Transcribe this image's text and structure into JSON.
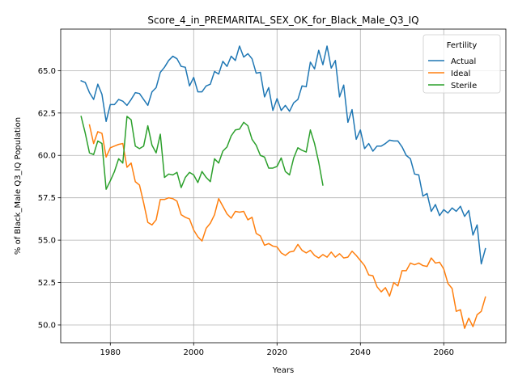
{
  "chart_data": {
    "type": "line",
    "title": "Score_4_in_PREMARITAL_SEX_OK_for_Black_Male_Q3_IQ",
    "xlabel": "Years",
    "ylabel": "% of Black_Male Q3_IQ Population",
    "xlim": [
      1968.1,
      2074.9
    ],
    "ylim": [
      48.95,
      67.45
    ],
    "xticks": [
      1980,
      2000,
      2020,
      2040,
      2060
    ],
    "xtick_labels": [
      "1980",
      "2000",
      "2020",
      "2040",
      "2060"
    ],
    "yticks": [
      50.0,
      52.5,
      55.0,
      57.5,
      60.0,
      62.5,
      65.0
    ],
    "ytick_labels": [
      "50.0",
      "52.5",
      "55.0",
      "57.5",
      "60.0",
      "62.5",
      "65.0"
    ],
    "grid": true,
    "legend": {
      "title": "Fertility",
      "position": "upper-right"
    },
    "series": [
      {
        "name": "Actual",
        "color": "#1f77b4",
        "x": [
          1973,
          1974,
          1975,
          1976,
          1977,
          1978,
          1979,
          1980,
          1981,
          1982,
          1983,
          1984,
          1985,
          1986,
          1987,
          1988,
          1989,
          1990,
          1991,
          1992,
          1993,
          1994,
          1995,
          1996,
          1997,
          1998,
          1999,
          2000,
          2001,
          2002,
          2003,
          2004,
          2005,
          2006,
          2007,
          2008,
          2009,
          2010,
          2011,
          2012,
          2013,
          2014,
          2015,
          2016,
          2017,
          2018,
          2019,
          2020,
          2021,
          2022,
          2023,
          2024,
          2025,
          2026,
          2027,
          2028,
          2029,
          2030,
          2031,
          2032,
          2033,
          2034,
          2035,
          2036,
          2037,
          2038,
          2039,
          2040,
          2041,
          2042,
          2043,
          2044,
          2045,
          2046,
          2047,
          2048,
          2049,
          2050,
          2051,
          2052,
          2053,
          2054,
          2055,
          2056,
          2057,
          2058,
          2059,
          2060,
          2061,
          2062,
          2063,
          2064,
          2065,
          2066,
          2067,
          2068,
          2069,
          2070
        ],
        "y": [
          64.4,
          64.3,
          63.7,
          63.3,
          64.2,
          63.6,
          62.0,
          63.0,
          63.0,
          63.3,
          63.2,
          62.95,
          63.3,
          63.7,
          63.65,
          63.3,
          62.95,
          63.75,
          64.0,
          64.9,
          65.2,
          65.6,
          65.85,
          65.7,
          65.25,
          65.2,
          64.1,
          64.6,
          63.75,
          63.75,
          64.1,
          64.2,
          64.95,
          64.8,
          65.55,
          65.25,
          65.85,
          65.6,
          66.45,
          65.8,
          66.0,
          65.7,
          64.85,
          64.9,
          63.45,
          64.0,
          62.65,
          63.35,
          62.65,
          62.95,
          62.6,
          63.1,
          63.3,
          64.1,
          64.05,
          65.5,
          65.1,
          66.2,
          65.35,
          66.45,
          65.15,
          65.6,
          63.45,
          64.15,
          61.95,
          62.7,
          60.95,
          61.5,
          60.4,
          60.7,
          60.25,
          60.55,
          60.55,
          60.7,
          60.9,
          60.85,
          60.85,
          60.5,
          60.0,
          59.8,
          58.9,
          58.85,
          57.6,
          57.75,
          56.7,
          57.1,
          56.45,
          56.8,
          56.6,
          56.9,
          56.7,
          57.0,
          56.4,
          56.75,
          55.3,
          55.9,
          53.6,
          54.5
        ]
      },
      {
        "name": "Ideal",
        "color": "#ff7f0e",
        "x": [
          1975,
          1976,
          1977,
          1978,
          1979,
          1980,
          1981,
          1982,
          1983,
          1984,
          1985,
          1986,
          1987,
          1988,
          1989,
          1990,
          1991,
          1992,
          1993,
          1994,
          1995,
          1996,
          1997,
          1998,
          1999,
          2000,
          2001,
          2002,
          2003,
          2004,
          2005,
          2006,
          2007,
          2008,
          2009,
          2010,
          2011,
          2012,
          2013,
          2014,
          2015,
          2016,
          2017,
          2018,
          2019,
          2020,
          2021,
          2022,
          2023,
          2024,
          2025,
          2026,
          2027,
          2028,
          2029,
          2030,
          2031,
          2032,
          2033,
          2034,
          2035,
          2036,
          2037,
          2038,
          2039,
          2040,
          2041,
          2042,
          2043,
          2044,
          2045,
          2046,
          2047,
          2048,
          2049,
          2050,
          2051,
          2052,
          2053,
          2054,
          2055,
          2056,
          2057,
          2058,
          2059,
          2060,
          2061,
          2062,
          2063,
          2064,
          2065,
          2066,
          2067,
          2068,
          2069,
          2070
        ],
        "y": [
          61.8,
          60.7,
          61.4,
          61.3,
          59.9,
          60.45,
          60.55,
          60.65,
          60.7,
          59.3,
          59.55,
          58.45,
          58.25,
          57.2,
          56.05,
          55.9,
          56.2,
          57.4,
          57.4,
          57.5,
          57.45,
          57.3,
          56.5,
          56.35,
          56.25,
          55.6,
          55.2,
          54.95,
          55.7,
          56.0,
          56.5,
          57.45,
          57.0,
          56.55,
          56.3,
          56.7,
          56.65,
          56.7,
          56.2,
          56.35,
          55.4,
          55.25,
          54.7,
          54.8,
          54.65,
          54.6,
          54.25,
          54.1,
          54.3,
          54.35,
          54.75,
          54.4,
          54.25,
          54.4,
          54.1,
          53.95,
          54.15,
          54.0,
          54.3,
          54.0,
          54.2,
          53.95,
          54.0,
          54.35,
          54.1,
          53.8,
          53.5,
          52.95,
          52.9,
          52.25,
          51.95,
          52.2,
          51.7,
          52.5,
          52.3,
          53.2,
          53.2,
          53.65,
          53.55,
          53.65,
          53.5,
          53.45,
          53.95,
          53.65,
          53.7,
          53.3,
          52.45,
          52.15,
          50.8,
          50.9,
          49.8,
          50.4,
          49.9,
          50.6,
          50.8,
          51.65
        ]
      },
      {
        "name": "Sterile",
        "color": "#2ca02c",
        "x": [
          1973,
          1974,
          1975,
          1976,
          1977,
          1978,
          1979,
          1980,
          1981,
          1982,
          1983,
          1984,
          1985,
          1986,
          1987,
          1988,
          1989,
          1990,
          1991,
          1992,
          1993,
          1994,
          1995,
          1996,
          1997,
          1998,
          1999,
          2000,
          2001,
          2002,
          2003,
          2004,
          2005,
          2006,
          2007,
          2008,
          2009,
          2010,
          2011,
          2012,
          2013,
          2014,
          2015,
          2016,
          2017,
          2018,
          2019,
          2020,
          2021,
          2022,
          2023,
          2024,
          2025,
          2026,
          2027,
          2028,
          2029,
          2030,
          2031
        ],
        "y": [
          62.3,
          61.3,
          60.15,
          60.05,
          60.85,
          60.7,
          58.0,
          58.5,
          59.05,
          59.8,
          59.55,
          62.3,
          62.1,
          60.55,
          60.4,
          60.55,
          61.75,
          60.6,
          60.15,
          61.25,
          58.7,
          58.9,
          58.85,
          59.0,
          58.1,
          58.7,
          59.0,
          58.85,
          58.4,
          59.05,
          58.7,
          58.45,
          59.8,
          59.55,
          60.25,
          60.5,
          61.15,
          61.5,
          61.55,
          61.95,
          61.75,
          60.95,
          60.6,
          60.0,
          59.9,
          59.25,
          59.25,
          59.35,
          59.85,
          59.05,
          58.85,
          59.85,
          60.45,
          60.3,
          60.2,
          61.5,
          60.7,
          59.6,
          58.25
        ]
      }
    ]
  }
}
